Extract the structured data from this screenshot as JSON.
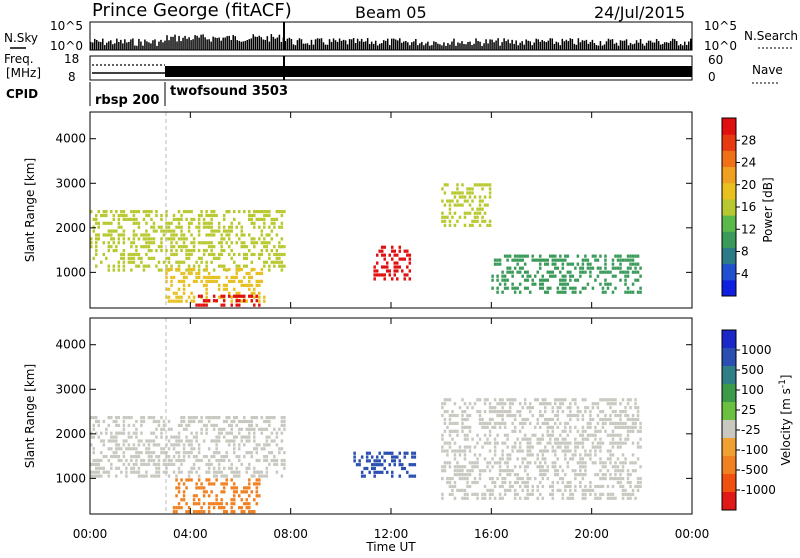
{
  "header": {
    "station": "Prince George (fitACF)",
    "beam": "Beam 05",
    "date": "24/Jul/2015"
  },
  "strips": {
    "nsky_label": "N.Sky",
    "nsearch_label": "N.Search",
    "noise_ticks_left": [
      "10^5",
      "10^0"
    ],
    "noise_ticks_right": [
      "10^5",
      "10^0"
    ],
    "freq_label_top": "Freq.",
    "freq_label_unit": "[MHz]",
    "freq_ticks": [
      "18",
      "8"
    ],
    "nave_label": "Nave",
    "nave_ticks": [
      "60",
      "0"
    ],
    "cpid_label": "CPID",
    "cpid_segments": [
      {
        "name": "rbsp 200",
        "start_hour": 0,
        "end_hour": 3
      },
      {
        "name": "twofsound 3503",
        "start_hour": 3,
        "end_hour": 24
      }
    ]
  },
  "chart_data": [
    {
      "type": "heatmap",
      "panel": "power",
      "ylabel": "Slant Range [km]",
      "xlabel": "",
      "ylim": [
        200,
        4600
      ],
      "y_ticks": [
        1000,
        2000,
        3000,
        4000
      ],
      "x_ticks": [
        "00:00",
        "04:00",
        "08:00",
        "12:00",
        "16:00",
        "20:00",
        "00:00"
      ],
      "xlim_hours": [
        0,
        24
      ],
      "colorbar": {
        "label": "Power [dB]",
        "ticks": [
          "4",
          "8",
          "12",
          "16",
          "20",
          "24",
          "28"
        ],
        "colors": [
          "#1020e0",
          "#2050d0",
          "#2a7a88",
          "#3a9a5a",
          "#5bb84a",
          "#b8c830",
          "#e8c020",
          "#f0a020",
          "#f07018",
          "#e83a10",
          "#e01010"
        ]
      },
      "features": [
        {
          "desc": "echo band",
          "start_hour": 0.0,
          "end_hour": 7.8,
          "range_km": [
            1000,
            2400
          ],
          "level_db": 14
        },
        {
          "desc": "echo patch",
          "start_hour": 3.0,
          "end_hour": 7.0,
          "range_km": [
            300,
            1100
          ],
          "level_db": 18
        },
        {
          "desc": "near-range strong echo",
          "start_hour": 4.2,
          "end_hour": 6.8,
          "range_km": [
            200,
            500
          ],
          "level_db": 28
        },
        {
          "desc": "strong echo",
          "start_hour": 11.3,
          "end_hour": 12.8,
          "range_km": [
            800,
            1600
          ],
          "level_db": 28
        },
        {
          "desc": "echo band",
          "start_hour": 14.0,
          "end_hour": 16.0,
          "range_km": [
            2000,
            3000
          ],
          "level_db": 14
        },
        {
          "desc": "echo band",
          "start_hour": 16.0,
          "end_hour": 22.0,
          "range_km": [
            500,
            1400
          ],
          "level_db": 10
        }
      ]
    },
    {
      "type": "heatmap",
      "panel": "velocity",
      "ylabel": "Slant Range [km]",
      "xlabel": "Time UT",
      "ylim": [
        200,
        4600
      ],
      "y_ticks": [
        1000,
        2000,
        3000,
        4000
      ],
      "x_ticks": [
        "00:00",
        "04:00",
        "08:00",
        "12:00",
        "16:00",
        "20:00",
        "00:00"
      ],
      "xlim_hours": [
        0,
        24
      ],
      "colorbar": {
        "label": "Velocity [m s^-1]",
        "label_main": "Velocity [m s",
        "label_exp": "-1",
        "label_end": "]",
        "ticks": [
          "1000",
          "500",
          "100",
          "25",
          "-25",
          "-100",
          "-500",
          "-1000"
        ],
        "colors": [
          "#1a28c8",
          "#2a4fb0",
          "#2f7f86",
          "#3c9a4a",
          "#6cc040",
          "#c8c8c0",
          "#f0a030",
          "#f08020",
          "#f05010",
          "#e01818"
        ]
      },
      "features": [
        {
          "desc": "ground scatter band",
          "start_hour": 0.0,
          "end_hour": 7.8,
          "range_km": [
            1000,
            2400
          ],
          "velocity": 0
        },
        {
          "desc": "away flow patch",
          "start_hour": 3.3,
          "end_hour": 6.8,
          "range_km": [
            200,
            1000
          ],
          "velocity": -200
        },
        {
          "desc": "toward flow patch",
          "start_hour": 10.5,
          "end_hour": 13.0,
          "range_km": [
            1000,
            1600
          ],
          "velocity": 500
        },
        {
          "desc": "ground scatter band",
          "start_hour": 14.0,
          "end_hour": 22.0,
          "range_km": [
            500,
            2800
          ],
          "velocity": 0
        }
      ]
    }
  ]
}
